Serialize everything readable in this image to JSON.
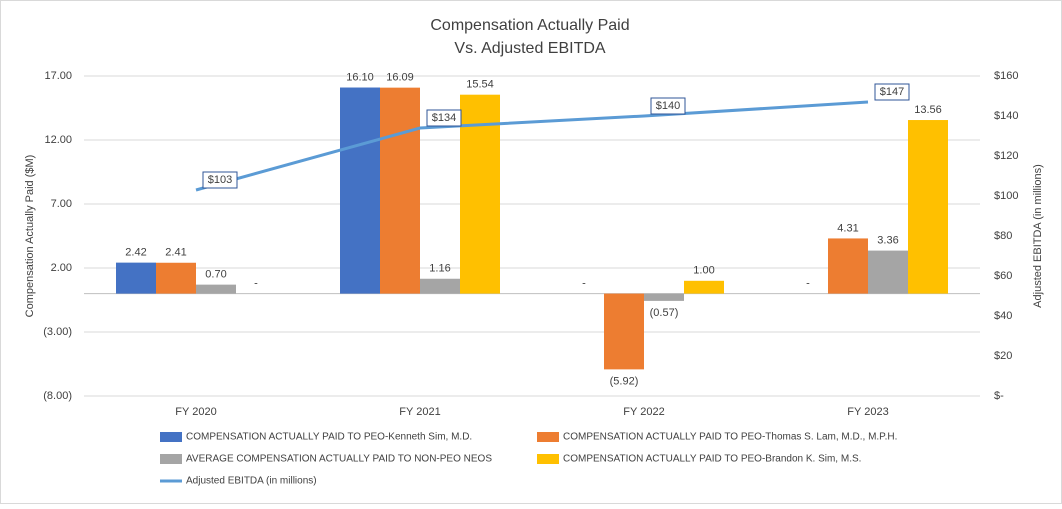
{
  "chart_data": {
    "type": "bar-line",
    "title": [
      "Compensation Actually Paid",
      "Vs. Adjusted EBITDA"
    ],
    "y_label": "Compensation Actually Paid ($M)",
    "y2_label": "Adjusted EBITDA (in millions)",
    "categories": [
      "FY 2020",
      "FY 2021",
      "FY 2022",
      "FY 2023"
    ],
    "ylim": [
      -8,
      17
    ],
    "yticks": [
      {
        "value": -8,
        "label": "(8.00)"
      },
      {
        "value": -3,
        "label": "(3.00)"
      },
      {
        "value": 2,
        "label": "2.00"
      },
      {
        "value": 7,
        "label": "7.00"
      },
      {
        "value": 12,
        "label": "12.00"
      },
      {
        "value": 17,
        "label": "17.00"
      }
    ],
    "y2lim": [
      0,
      160
    ],
    "y2ticks": [
      {
        "value": 0,
        "label": "$-"
      },
      {
        "value": 20,
        "label": "$20"
      },
      {
        "value": 40,
        "label": "$40"
      },
      {
        "value": 60,
        "label": "$60"
      },
      {
        "value": 80,
        "label": "$80"
      },
      {
        "value": 100,
        "label": "$100"
      },
      {
        "value": 120,
        "label": "$120"
      },
      {
        "value": 140,
        "label": "$140"
      },
      {
        "value": 160,
        "label": "$160"
      }
    ],
    "grid": true,
    "series": [
      {
        "name": "COMPENSATION ACTUALLY PAID TO PEO-Kenneth Sim, M.D.",
        "color": "#4472c4",
        "type": "bar",
        "values": [
          2.42,
          16.1,
          0,
          0
        ],
        "value_labels": [
          "2.42",
          "16.10",
          "-",
          "-"
        ]
      },
      {
        "name": "COMPENSATION ACTUALLY PAID TO PEO-Thomas S. Lam, M.D., M.P.H.",
        "color": "#ed7d31",
        "type": "bar",
        "values": [
          2.41,
          16.09,
          -5.92,
          4.31
        ],
        "value_labels": [
          "2.41",
          "16.09",
          "(5.92)",
          "4.31"
        ]
      },
      {
        "name": "AVERAGE COMPENSATION ACTUALLY PAID TO NON-PEO NEOS",
        "color": "#a5a5a5",
        "type": "bar",
        "values": [
          0.7,
          1.16,
          -0.57,
          3.36
        ],
        "value_labels": [
          "0.70",
          "1.16",
          "(0.57)",
          "3.36"
        ]
      },
      {
        "name": "COMPENSATION ACTUALLY PAID TO PEO-Brandon K. Sim, M.S.",
        "color": "#ffc000",
        "type": "bar",
        "values": [
          0,
          15.54,
          1.0,
          13.56
        ],
        "value_labels": [
          "-",
          "15.54",
          "1.00",
          "13.56"
        ]
      },
      {
        "name": "Adjusted EBITDA (in millions)",
        "color": "#5b9bd5",
        "type": "line",
        "axis": "y2",
        "values": [
          103,
          134,
          140,
          147
        ],
        "value_labels": [
          "$103",
          "$134",
          "$140",
          "$147"
        ]
      }
    ]
  }
}
